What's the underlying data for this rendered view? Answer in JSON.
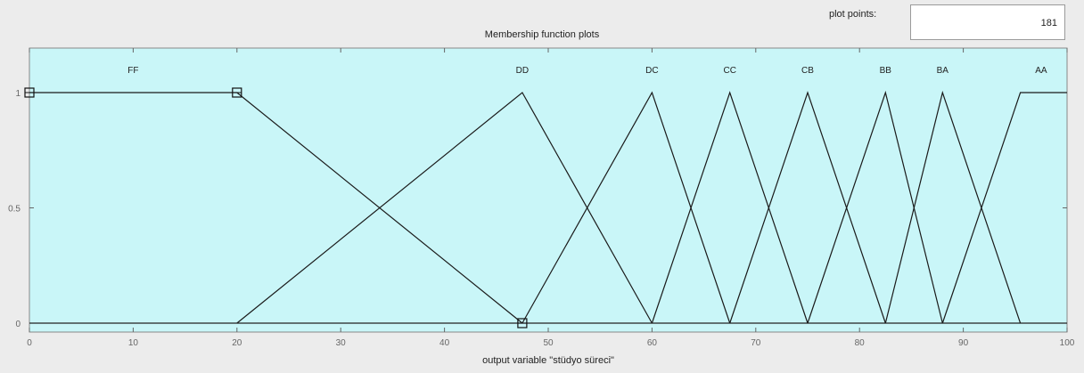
{
  "plot_points": {
    "label": "plot points:",
    "value": "181"
  },
  "chart_data": {
    "type": "line",
    "title": "Membership function plots",
    "xlabel": "output variable \"stüdyo süreci\"",
    "ylabel": "",
    "xlim": [
      0,
      100
    ],
    "ylim": [
      0,
      1
    ],
    "xticks": [
      0,
      10,
      20,
      30,
      40,
      50,
      60,
      70,
      80,
      90,
      100
    ],
    "yticks": [
      0,
      0.5,
      1
    ],
    "ytick_labels": [
      "0",
      "0.5",
      "1"
    ],
    "background_color": "#c9f6f8",
    "series": [
      {
        "name": "FF",
        "x": [
          0,
          20,
          47.5
        ],
        "y": [
          1,
          1,
          0
        ]
      },
      {
        "name": "DD",
        "x": [
          20,
          47.5,
          60
        ],
        "y": [
          0,
          1,
          0
        ]
      },
      {
        "name": "DC",
        "x": [
          47.5,
          60,
          67.5
        ],
        "y": [
          0,
          1,
          0
        ]
      },
      {
        "name": "CC",
        "x": [
          60,
          67.5,
          75
        ],
        "y": [
          0,
          1,
          0
        ]
      },
      {
        "name": "CB",
        "x": [
          67.5,
          75,
          82.5
        ],
        "y": [
          0,
          1,
          0
        ]
      },
      {
        "name": "BB",
        "x": [
          75,
          82.5,
          88
        ],
        "y": [
          0,
          1,
          0
        ]
      },
      {
        "name": "BA",
        "x": [
          82.5,
          88,
          95.5
        ],
        "y": [
          0,
          1,
          0
        ]
      },
      {
        "name": "AA",
        "x": [
          88,
          95.5,
          100
        ],
        "y": [
          0,
          1,
          1
        ]
      }
    ],
    "mf_label_x": [
      10,
      47.5,
      60,
      67.5,
      75,
      82.5,
      88,
      97.5
    ],
    "markers": [
      {
        "x": 0,
        "y": 1
      },
      {
        "x": 20,
        "y": 1
      },
      {
        "x": 47.5,
        "y": 0
      }
    ]
  }
}
